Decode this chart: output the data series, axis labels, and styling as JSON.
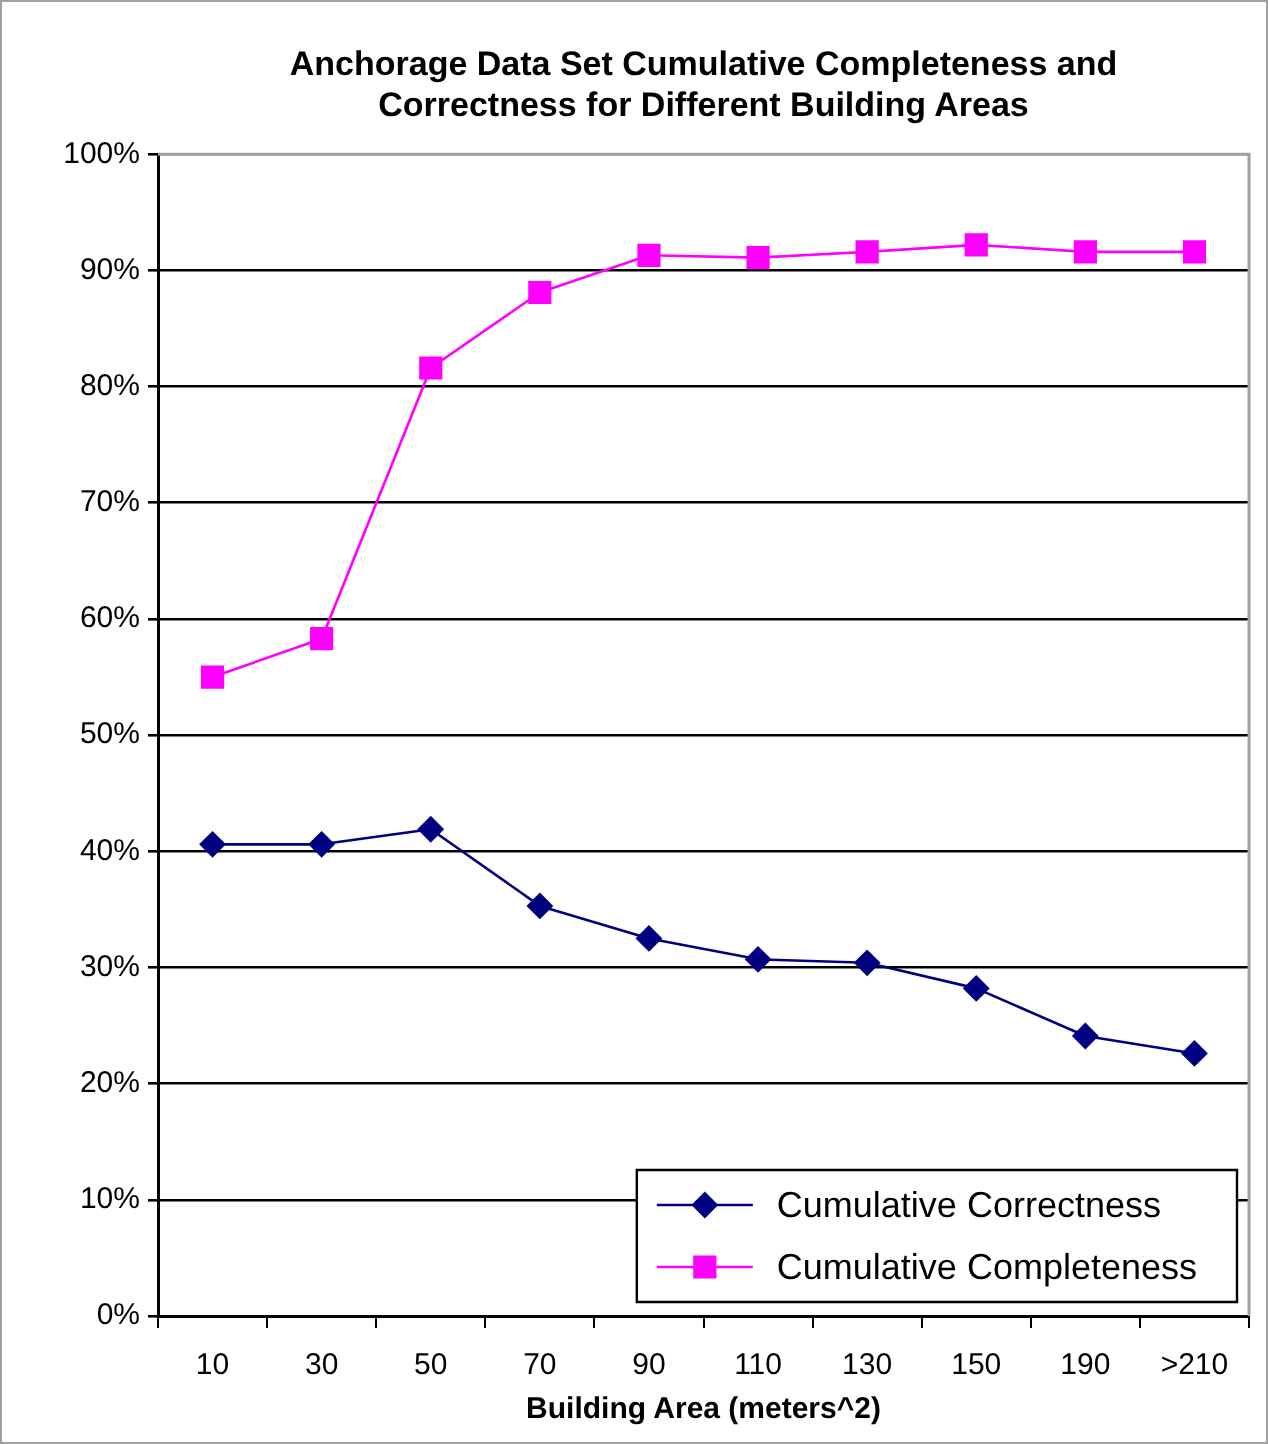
{
  "chart_data": {
    "type": "line",
    "title": "Anchorage Data Set Cumulative Completeness and Correctness for Different Building Areas",
    "xlabel": "Building Area (meters^2)",
    "categories": [
      "10",
      "30",
      "50",
      "70",
      "90",
      "110",
      "130",
      "150",
      "190",
      ">210"
    ],
    "series": [
      {
        "name": "Cumulative Correctness",
        "color": "#000080",
        "marker": "diamond",
        "values": [
          40.6,
          40.6,
          41.9,
          35.3,
          32.5,
          30.7,
          30.4,
          28.2,
          24.1,
          22.6
        ]
      },
      {
        "name": "Cumulative Completeness",
        "color": "#ff00ff",
        "marker": "square",
        "values": [
          55.0,
          58.3,
          81.6,
          88.1,
          91.3,
          91.1,
          91.6,
          92.2,
          91.6,
          91.6
        ]
      }
    ],
    "ylim": [
      0,
      100
    ],
    "yticks": [
      {
        "value": 0,
        "label": "0%"
      },
      {
        "value": 10,
        "label": "10%"
      },
      {
        "value": 20,
        "label": "20%"
      },
      {
        "value": 30,
        "label": "30%"
      },
      {
        "value": 40,
        "label": "40%"
      },
      {
        "value": 50,
        "label": "50%"
      },
      {
        "value": 60,
        "label": "60%"
      },
      {
        "value": 70,
        "label": "70%"
      },
      {
        "value": 80,
        "label": "80%"
      },
      {
        "value": 90,
        "label": "90%"
      },
      {
        "value": 100,
        "label": "100%"
      }
    ],
    "grid": "y",
    "legend": "bottom right"
  }
}
